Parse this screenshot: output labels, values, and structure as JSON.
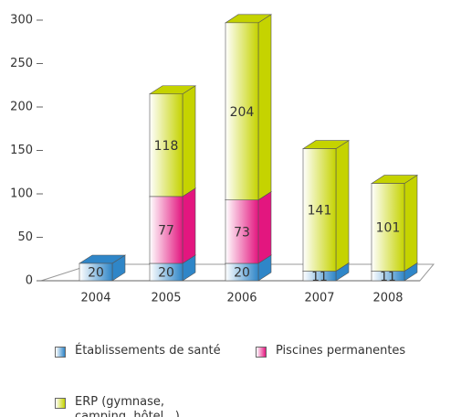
{
  "chart_data": {
    "type": "bar",
    "stacked": true,
    "categories": [
      "2004",
      "2005",
      "2006",
      "2007",
      "2008"
    ],
    "series": [
      {
        "name": "Établissements de santé",
        "color": "#2f86c8",
        "values": [
          20,
          20,
          20,
          11,
          11
        ]
      },
      {
        "name": "Piscines permanentes",
        "color": "#e3167f",
        "values": [
          null,
          77,
          73,
          null,
          null
        ]
      },
      {
        "name": "ERP (gymnase, camping, hôtel...)",
        "color": "#c5d300",
        "values": [
          null,
          118,
          204,
          141,
          101
        ]
      }
    ],
    "ylim": [
      0,
      300
    ],
    "yticks": [
      0,
      50,
      100,
      150,
      200,
      250,
      300
    ],
    "grid": false
  }
}
